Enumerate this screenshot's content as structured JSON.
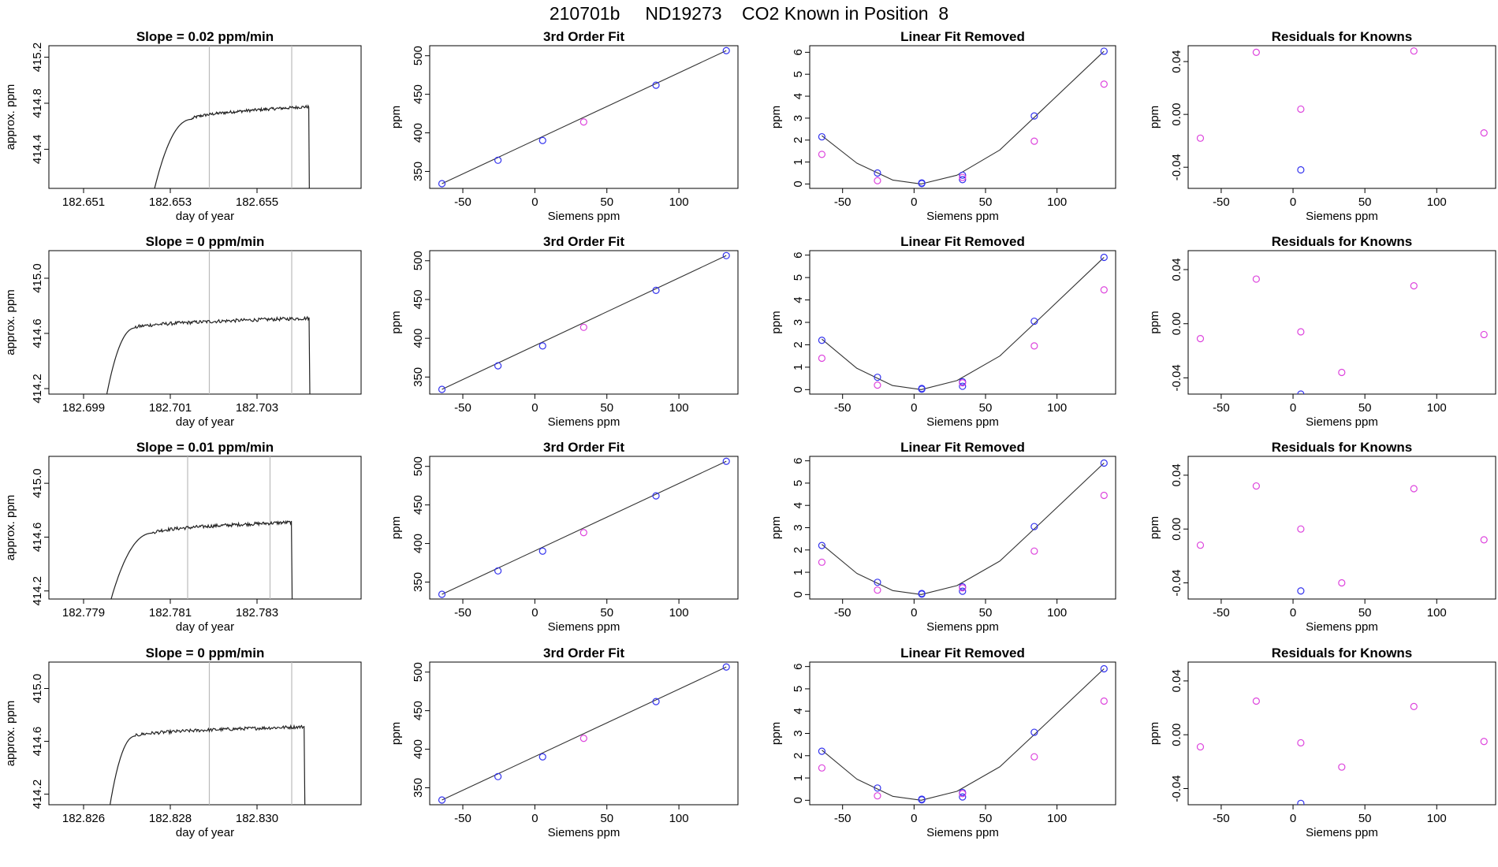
{
  "title": "210701b     ND19273    CO2 Known in Position  8",
  "colors": {
    "axis": "#000000",
    "fit_line": "#333333",
    "point_blue": "#3333ee",
    "point_magenta": "#dd44dd",
    "vline": "#bbbbbb"
  },
  "chart_data": [
    {
      "type": "line",
      "name": "drift-row1",
      "title": "Slope =  0.02  ppm/min",
      "xlabel": "day of year",
      "ylabel": "approx. ppm",
      "xlim": [
        182.6502,
        182.6574
      ],
      "ylim": [
        414.06,
        415.3
      ],
      "xticks": [
        182.651,
        182.653,
        182.655
      ],
      "xtick_labels": [
        "182.651",
        "182.653",
        "182.655"
      ],
      "yticks": [
        414.4,
        414.8,
        415.2
      ],
      "ytick_labels": [
        "414.4",
        "414.8",
        "415.2"
      ],
      "vlines": [
        182.6539,
        182.6558
      ],
      "trace": {
        "start": 182.6526,
        "rise_end": 182.6535,
        "plateau_end": 182.6562,
        "end": 182.6563,
        "low": 414.0,
        "plateau_start": 414.66,
        "plateau_end_level": 414.77
      }
    },
    {
      "type": "scatter",
      "name": "fit-row1",
      "title": "3rd Order Fit",
      "xlabel": "Siemens ppm",
      "ylabel": "ppm",
      "xlim": [
        -73,
        141
      ],
      "ylim": [
        328,
        513
      ],
      "xticks": [
        -50,
        0,
        50,
        100
      ],
      "xtick_labels": [
        "-50",
        "0",
        "50",
        "100"
      ],
      "yticks": [
        350,
        400,
        450,
        500
      ],
      "ytick_labels": [
        "350",
        "400",
        "450",
        "500"
      ],
      "x": [
        -64.5,
        -25.6,
        5.4,
        33.9,
        84.1,
        132.9
      ],
      "y": [
        334.1,
        364.5,
        390.1,
        414.1,
        461.8,
        506.6
      ],
      "point_colors": [
        "blue",
        "blue",
        "blue",
        "magenta",
        "blue",
        "blue"
      ],
      "line": [
        [
          -64.5,
          334.1
        ],
        [
          132.9,
          506.6
        ]
      ]
    },
    {
      "type": "scatter",
      "name": "linres-row1",
      "title": "Linear Fit Removed",
      "xlabel": "Siemens ppm",
      "ylabel": "ppm",
      "xlim": [
        -73,
        141
      ],
      "ylim": [
        -0.2,
        6.3
      ],
      "xticks": [
        -50,
        0,
        50,
        100
      ],
      "xtick_labels": [
        "-50",
        "0",
        "50",
        "100"
      ],
      "yticks": [
        0,
        1,
        2,
        3,
        4,
        5,
        6
      ],
      "ytick_labels": [
        "0",
        "1",
        "2",
        "3",
        "4",
        "5",
        "6"
      ],
      "series": [
        {
          "name": "blue",
          "x": [
            -64.5,
            -25.6,
            5.4,
            5.4,
            33.9,
            33.9,
            84.1,
            132.9
          ],
          "y": [
            2.15,
            0.5,
            0.05,
            0.02,
            0.2,
            0.4,
            3.1,
            6.05
          ]
        },
        {
          "name": "magenta",
          "x": [
            -64.5,
            -25.6,
            33.9,
            84.1,
            132.9
          ],
          "y": [
            1.35,
            0.15,
            0.3,
            1.95,
            4.55
          ]
        }
      ],
      "curve": [
        [
          -64.5,
          2.2
        ],
        [
          -40,
          0.95
        ],
        [
          -15,
          0.18
        ],
        [
          5,
          0.0
        ],
        [
          30,
          0.4
        ],
        [
          60,
          1.55
        ],
        [
          90,
          3.4
        ],
        [
          132.9,
          6.05
        ]
      ]
    },
    {
      "type": "scatter",
      "name": "resid-row1",
      "title": "Residuals for Knowns",
      "xlabel": "Siemens ppm",
      "ylabel": "ppm",
      "xlim": [
        -73,
        141
      ],
      "ylim": [
        -0.056,
        0.052
      ],
      "xticks": [
        -50,
        0,
        50,
        100
      ],
      "xtick_labels": [
        "-50",
        "0",
        "50",
        "100"
      ],
      "yticks": [
        -0.04,
        0.0,
        0.04
      ],
      "ytick_labels": [
        "-0.04",
        "0.00",
        "0.04"
      ],
      "series": [
        {
          "name": "magenta",
          "x": [
            -64.5,
            -25.6,
            5.4,
            84.1,
            132.9
          ],
          "y": [
            -0.018,
            0.047,
            0.004,
            0.048,
            -0.014
          ]
        },
        {
          "name": "blue",
          "x": [
            5.4
          ],
          "y": [
            -0.042
          ]
        }
      ]
    },
    {
      "type": "line",
      "name": "drift-row2",
      "title": "Slope =  0  ppm/min",
      "xlabel": "day of year",
      "ylabel": "approx. ppm",
      "xlim": [
        182.6982,
        182.7054
      ],
      "ylim": [
        414.16,
        415.2
      ],
      "xticks": [
        182.699,
        182.701,
        182.703
      ],
      "xtick_labels": [
        "182.699",
        "182.701",
        "182.703"
      ],
      "yticks": [
        414.2,
        414.6,
        415.0
      ],
      "ytick_labels": [
        "414.2",
        "414.6",
        "415.0"
      ],
      "vlines": [
        182.7019,
        182.7038
      ],
      "trace": {
        "start": 182.6995,
        "rise_end": 182.7002,
        "plateau_end": 182.7042,
        "end": 182.7043,
        "low": 414.1,
        "plateau_start": 414.64,
        "plateau_end_level": 414.71
      }
    },
    {
      "type": "scatter",
      "name": "fit-row2",
      "title": "3rd Order Fit",
      "xlabel": "Siemens ppm",
      "ylabel": "ppm",
      "xlim": [
        -73,
        141
      ],
      "ylim": [
        328,
        513
      ],
      "xticks": [
        -50,
        0,
        50,
        100
      ],
      "xtick_labels": [
        "-50",
        "0",
        "50",
        "100"
      ],
      "yticks": [
        350,
        400,
        450,
        500
      ],
      "ytick_labels": [
        "350",
        "400",
        "450",
        "500"
      ],
      "x": [
        -64.5,
        -25.6,
        5.4,
        33.9,
        84.1,
        132.9
      ],
      "y": [
        334.1,
        364.5,
        390.1,
        414.1,
        461.8,
        506.6
      ],
      "point_colors": [
        "blue",
        "blue",
        "blue",
        "magenta",
        "blue",
        "blue"
      ],
      "line": [
        [
          -64.5,
          334.1
        ],
        [
          132.9,
          506.6
        ]
      ]
    },
    {
      "type": "scatter",
      "name": "linres-row2",
      "title": "Linear Fit Removed",
      "xlabel": "Siemens ppm",
      "ylabel": "ppm",
      "xlim": [
        -73,
        141
      ],
      "ylim": [
        -0.2,
        6.2
      ],
      "xticks": [
        -50,
        0,
        50,
        100
      ],
      "xtick_labels": [
        "-50",
        "0",
        "50",
        "100"
      ],
      "yticks": [
        0,
        1,
        2,
        3,
        4,
        5,
        6
      ],
      "ytick_labels": [
        "0",
        "1",
        "2",
        "3",
        "4",
        "5",
        "6"
      ],
      "series": [
        {
          "name": "blue",
          "x": [
            -64.5,
            -25.6,
            5.4,
            5.4,
            33.9,
            33.9,
            84.1,
            132.9
          ],
          "y": [
            2.2,
            0.55,
            0.05,
            0.02,
            0.15,
            0.35,
            3.05,
            5.9
          ]
        },
        {
          "name": "magenta",
          "x": [
            -64.5,
            -25.6,
            33.9,
            84.1,
            132.9
          ],
          "y": [
            1.4,
            0.2,
            0.3,
            1.95,
            4.45
          ]
        }
      ],
      "curve": [
        [
          -64.5,
          2.25
        ],
        [
          -40,
          0.95
        ],
        [
          -15,
          0.18
        ],
        [
          5,
          0.0
        ],
        [
          30,
          0.4
        ],
        [
          60,
          1.5
        ],
        [
          90,
          3.3
        ],
        [
          132.9,
          5.9
        ]
      ]
    },
    {
      "type": "scatter",
      "name": "resid-row2",
      "title": "Residuals for Knowns",
      "xlabel": "Siemens ppm",
      "ylabel": "ppm",
      "xlim": [
        -73,
        141
      ],
      "ylim": [
        -0.052,
        0.054
      ],
      "xticks": [
        -50,
        0,
        50,
        100
      ],
      "xtick_labels": [
        "-50",
        "0",
        "50",
        "100"
      ],
      "yticks": [
        -0.04,
        0.0,
        0.04
      ],
      "ytick_labels": [
        "-0.04",
        "0.00",
        "0.04"
      ],
      "series": [
        {
          "name": "magenta",
          "x": [
            -64.5,
            -25.6,
            5.4,
            33.9,
            84.1,
            132.9
          ],
          "y": [
            -0.011,
            0.033,
            -0.006,
            -0.036,
            0.028,
            -0.008
          ]
        },
        {
          "name": "blue",
          "x": [
            5.4
          ],
          "y": [
            -0.052
          ]
        }
      ]
    },
    {
      "type": "line",
      "name": "drift-row3",
      "title": "Slope =  0.01  ppm/min",
      "xlabel": "day of year",
      "ylabel": "approx. ppm",
      "xlim": [
        182.7782,
        182.7854
      ],
      "ylim": [
        414.14,
        415.2
      ],
      "xticks": [
        182.779,
        182.781,
        182.783
      ],
      "xtick_labels": [
        "182.779",
        "182.781",
        "182.783"
      ],
      "yticks": [
        414.2,
        414.6,
        415.0
      ],
      "ytick_labels": [
        "414.2",
        "414.6",
        "415.0"
      ],
      "vlines": [
        182.7814,
        182.7833
      ],
      "trace": {
        "start": 182.7796,
        "rise_end": 182.7806,
        "plateau_end": 182.7838,
        "end": 182.7839,
        "low": 414.1,
        "plateau_start": 414.63,
        "plateau_end_level": 414.71
      }
    },
    {
      "type": "scatter",
      "name": "fit-row3",
      "title": "3rd Order Fit",
      "xlabel": "Siemens ppm",
      "ylabel": "ppm",
      "xlim": [
        -73,
        141
      ],
      "ylim": [
        328,
        513
      ],
      "xticks": [
        -50,
        0,
        50,
        100
      ],
      "xtick_labels": [
        "-50",
        "0",
        "50",
        "100"
      ],
      "yticks": [
        350,
        400,
        450,
        500
      ],
      "ytick_labels": [
        "350",
        "400",
        "450",
        "500"
      ],
      "x": [
        -64.5,
        -25.6,
        5.4,
        33.9,
        84.1,
        132.9
      ],
      "y": [
        334.1,
        364.5,
        390.1,
        414.1,
        461.8,
        506.6
      ],
      "point_colors": [
        "blue",
        "blue",
        "blue",
        "magenta",
        "blue",
        "blue"
      ],
      "line": [
        [
          -64.5,
          334.1
        ],
        [
          132.9,
          506.6
        ]
      ]
    },
    {
      "type": "scatter",
      "name": "linres-row3",
      "title": "Linear Fit Removed",
      "xlabel": "Siemens ppm",
      "ylabel": "ppm",
      "xlim": [
        -73,
        141
      ],
      "ylim": [
        -0.2,
        6.2
      ],
      "xticks": [
        -50,
        0,
        50,
        100
      ],
      "xtick_labels": [
        "-50",
        "0",
        "50",
        "100"
      ],
      "yticks": [
        0,
        1,
        2,
        3,
        4,
        5,
        6
      ],
      "ytick_labels": [
        "0",
        "1",
        "2",
        "3",
        "4",
        "5",
        "6"
      ],
      "series": [
        {
          "name": "blue",
          "x": [
            -64.5,
            -25.6,
            5.4,
            5.4,
            33.9,
            33.9,
            84.1,
            132.9
          ],
          "y": [
            2.2,
            0.55,
            0.05,
            0.02,
            0.15,
            0.35,
            3.05,
            5.9
          ]
        },
        {
          "name": "magenta",
          "x": [
            -64.5,
            -25.6,
            33.9,
            84.1,
            132.9
          ],
          "y": [
            1.45,
            0.2,
            0.3,
            1.95,
            4.45
          ]
        }
      ],
      "curve": [
        [
          -64.5,
          2.25
        ],
        [
          -40,
          0.95
        ],
        [
          -15,
          0.18
        ],
        [
          5,
          0.0
        ],
        [
          30,
          0.4
        ],
        [
          60,
          1.5
        ],
        [
          90,
          3.3
        ],
        [
          132.9,
          5.9
        ]
      ]
    },
    {
      "type": "scatter",
      "name": "resid-row3",
      "title": "Residuals for Knowns",
      "xlabel": "Siemens ppm",
      "ylabel": "ppm",
      "xlim": [
        -73,
        141
      ],
      "ylim": [
        -0.052,
        0.054
      ],
      "xticks": [
        -50,
        0,
        50,
        100
      ],
      "xtick_labels": [
        "-50",
        "0",
        "50",
        "100"
      ],
      "yticks": [
        -0.04,
        0.0,
        0.04
      ],
      "ytick_labels": [
        "-0.04",
        "0.00",
        "0.04"
      ],
      "series": [
        {
          "name": "magenta",
          "x": [
            -64.5,
            -25.6,
            5.4,
            33.9,
            84.1,
            132.9
          ],
          "y": [
            -0.012,
            0.032,
            0.0,
            -0.04,
            0.03,
            -0.008
          ]
        },
        {
          "name": "blue",
          "x": [
            5.4
          ],
          "y": [
            -0.046
          ]
        }
      ]
    },
    {
      "type": "line",
      "name": "drift-row4",
      "title": "Slope =  0  ppm/min",
      "xlabel": "day of year",
      "ylabel": "approx. ppm",
      "xlim": [
        182.8252,
        182.8324
      ],
      "ylim": [
        414.12,
        415.2
      ],
      "xticks": [
        182.826,
        182.828,
        182.83
      ],
      "xtick_labels": [
        "182.826",
        "182.828",
        "182.830"
      ],
      "yticks": [
        414.2,
        414.6,
        415.0
      ],
      "ytick_labels": [
        "414.2",
        "414.6",
        "415.0"
      ],
      "vlines": [
        182.8289,
        182.8308
      ],
      "trace": {
        "start": 182.8266,
        "rise_end": 182.8272,
        "plateau_end": 182.8311,
        "end": 182.8312,
        "low": 414.1,
        "plateau_start": 414.64,
        "plateau_end_level": 414.71
      }
    },
    {
      "type": "scatter",
      "name": "fit-row4",
      "title": "3rd Order Fit",
      "xlabel": "Siemens ppm",
      "ylabel": "ppm",
      "xlim": [
        -73,
        141
      ],
      "ylim": [
        328,
        513
      ],
      "xticks": [
        -50,
        0,
        50,
        100
      ],
      "xtick_labels": [
        "-50",
        "0",
        "50",
        "100"
      ],
      "yticks": [
        350,
        400,
        450,
        500
      ],
      "ytick_labels": [
        "350",
        "400",
        "450",
        "500"
      ],
      "x": [
        -64.5,
        -25.6,
        5.4,
        33.9,
        84.1,
        132.9
      ],
      "y": [
        334.1,
        364.5,
        390.1,
        414.1,
        461.8,
        506.6
      ],
      "point_colors": [
        "blue",
        "blue",
        "blue",
        "magenta",
        "blue",
        "blue"
      ],
      "line": [
        [
          -64.5,
          334.1
        ],
        [
          132.9,
          506.6
        ]
      ]
    },
    {
      "type": "scatter",
      "name": "linres-row4",
      "title": "Linear Fit Removed",
      "xlabel": "Siemens ppm",
      "ylabel": "ppm",
      "xlim": [
        -73,
        141
      ],
      "ylim": [
        -0.2,
        6.2
      ],
      "xticks": [
        -50,
        0,
        50,
        100
      ],
      "xtick_labels": [
        "-50",
        "0",
        "50",
        "100"
      ],
      "yticks": [
        0,
        1,
        2,
        3,
        4,
        5,
        6
      ],
      "ytick_labels": [
        "0",
        "1",
        "2",
        "3",
        "4",
        "5",
        "6"
      ],
      "series": [
        {
          "name": "blue",
          "x": [
            -64.5,
            -25.6,
            5.4,
            5.4,
            33.9,
            33.9,
            84.1,
            132.9
          ],
          "y": [
            2.2,
            0.55,
            0.05,
            0.02,
            0.15,
            0.35,
            3.05,
            5.9
          ]
        },
        {
          "name": "magenta",
          "x": [
            -64.5,
            -25.6,
            33.9,
            84.1,
            132.9
          ],
          "y": [
            1.45,
            0.2,
            0.3,
            1.95,
            4.45
          ]
        }
      ],
      "curve": [
        [
          -64.5,
          2.25
        ],
        [
          -40,
          0.95
        ],
        [
          -15,
          0.18
        ],
        [
          5,
          0.0
        ],
        [
          30,
          0.4
        ],
        [
          60,
          1.5
        ],
        [
          90,
          3.3
        ],
        [
          132.9,
          5.9
        ]
      ]
    },
    {
      "type": "scatter",
      "name": "resid-row4",
      "title": "Residuals for Knowns",
      "xlabel": "Siemens ppm",
      "ylabel": "ppm",
      "xlim": [
        -73,
        141
      ],
      "ylim": [
        -0.052,
        0.054
      ],
      "xticks": [
        -50,
        0,
        50,
        100
      ],
      "xtick_labels": [
        "-50",
        "0",
        "50",
        "100"
      ],
      "yticks": [
        -0.04,
        0.0,
        0.04
      ],
      "ytick_labels": [
        "-0.04",
        "0.00",
        "0.04"
      ],
      "series": [
        {
          "name": "magenta",
          "x": [
            -64.5,
            -25.6,
            5.4,
            33.9,
            84.1,
            132.9
          ],
          "y": [
            -0.009,
            0.025,
            -0.006,
            -0.024,
            0.021,
            -0.005
          ]
        },
        {
          "name": "blue",
          "x": [
            5.4
          ],
          "y": [
            -0.051
          ]
        }
      ]
    }
  ]
}
